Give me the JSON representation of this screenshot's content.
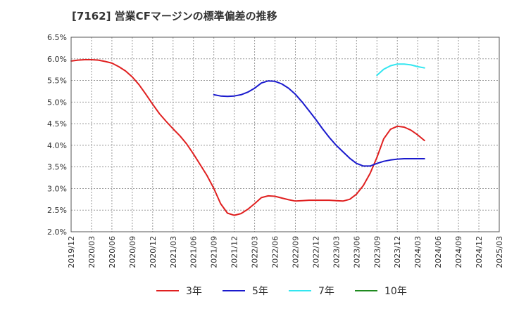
{
  "chart_data": {
    "type": "line",
    "title": "[7162]  営業CFマージンの標準偏差の推移",
    "xlabel": "",
    "ylabel": "",
    "ylim": [
      2.0,
      6.5
    ],
    "yticks": [
      "6.5%",
      "6.0%",
      "5.5%",
      "5.0%",
      "4.5%",
      "4.0%",
      "3.5%",
      "3.0%",
      "2.5%",
      "2.0%"
    ],
    "ytick_values": [
      6.5,
      6.0,
      5.5,
      5.0,
      4.5,
      4.0,
      3.5,
      3.0,
      2.5,
      2.0
    ],
    "x_range": [
      "2019/12",
      "2025/03"
    ],
    "xticks": [
      "2019/12",
      "2020/03",
      "2020/06",
      "2020/09",
      "2020/12",
      "2021/03",
      "2021/06",
      "2021/09",
      "2021/12",
      "2022/03",
      "2022/06",
      "2022/09",
      "2022/12",
      "2023/03",
      "2023/06",
      "2023/09",
      "2023/12",
      "2024/03",
      "2024/06",
      "2024/09",
      "2024/12",
      "2025/03"
    ],
    "grid": true,
    "legend_position": "bottom",
    "series": [
      {
        "name": "3年",
        "color": "#e02020",
        "points": [
          [
            "2019/12",
            5.95
          ],
          [
            "2020/01",
            5.97
          ],
          [
            "2020/02",
            5.98
          ],
          [
            "2020/03",
            5.98
          ],
          [
            "2020/04",
            5.97
          ],
          [
            "2020/05",
            5.94
          ],
          [
            "2020/06",
            5.9
          ],
          [
            "2020/07",
            5.82
          ],
          [
            "2020/08",
            5.72
          ],
          [
            "2020/09",
            5.58
          ],
          [
            "2020/10",
            5.4
          ],
          [
            "2020/11",
            5.18
          ],
          [
            "2020/12",
            4.95
          ],
          [
            "2021/01",
            4.73
          ],
          [
            "2021/02",
            4.55
          ],
          [
            "2021/03",
            4.38
          ],
          [
            "2021/04",
            4.22
          ],
          [
            "2021/05",
            4.03
          ],
          [
            "2021/06",
            3.8
          ],
          [
            "2021/07",
            3.55
          ],
          [
            "2021/08",
            3.3
          ],
          [
            "2021/09",
            3.0
          ],
          [
            "2021/10",
            2.65
          ],
          [
            "2021/11",
            2.43
          ],
          [
            "2021/12",
            2.38
          ],
          [
            "2022/01",
            2.42
          ],
          [
            "2022/02",
            2.52
          ],
          [
            "2022/03",
            2.65
          ],
          [
            "2022/04",
            2.79
          ],
          [
            "2022/05",
            2.83
          ],
          [
            "2022/06",
            2.82
          ],
          [
            "2022/07",
            2.78
          ],
          [
            "2022/08",
            2.74
          ],
          [
            "2022/09",
            2.71
          ],
          [
            "2022/10",
            2.72
          ],
          [
            "2022/11",
            2.73
          ],
          [
            "2022/12",
            2.73
          ],
          [
            "2023/01",
            2.73
          ],
          [
            "2023/02",
            2.73
          ],
          [
            "2023/03",
            2.72
          ],
          [
            "2023/04",
            2.71
          ],
          [
            "2023/05",
            2.75
          ],
          [
            "2023/06",
            2.87
          ],
          [
            "2023/07",
            3.07
          ],
          [
            "2023/08",
            3.35
          ],
          [
            "2023/09",
            3.72
          ],
          [
            "2023/10",
            4.15
          ],
          [
            "2023/11",
            4.37
          ],
          [
            "2023/12",
            4.44
          ],
          [
            "2024/01",
            4.42
          ],
          [
            "2024/02",
            4.35
          ],
          [
            "2024/03",
            4.24
          ],
          [
            "2024/04",
            4.11
          ]
        ]
      },
      {
        "name": "5年",
        "color": "#1a1acd",
        "points": [
          [
            "2021/09",
            5.17
          ],
          [
            "2021/10",
            5.14
          ],
          [
            "2021/11",
            5.13
          ],
          [
            "2021/12",
            5.14
          ],
          [
            "2022/01",
            5.17
          ],
          [
            "2022/02",
            5.23
          ],
          [
            "2022/03",
            5.32
          ],
          [
            "2022/04",
            5.44
          ],
          [
            "2022/05",
            5.49
          ],
          [
            "2022/06",
            5.48
          ],
          [
            "2022/07",
            5.42
          ],
          [
            "2022/08",
            5.32
          ],
          [
            "2022/09",
            5.18
          ],
          [
            "2022/10",
            5.0
          ],
          [
            "2022/11",
            4.8
          ],
          [
            "2022/12",
            4.6
          ],
          [
            "2023/01",
            4.38
          ],
          [
            "2023/02",
            4.18
          ],
          [
            "2023/03",
            4.0
          ],
          [
            "2023/04",
            3.85
          ],
          [
            "2023/05",
            3.7
          ],
          [
            "2023/06",
            3.58
          ],
          [
            "2023/07",
            3.52
          ],
          [
            "2023/08",
            3.52
          ],
          [
            "2023/09",
            3.58
          ],
          [
            "2023/10",
            3.63
          ],
          [
            "2023/11",
            3.66
          ],
          [
            "2023/12",
            3.68
          ],
          [
            "2024/01",
            3.69
          ],
          [
            "2024/02",
            3.69
          ],
          [
            "2024/03",
            3.69
          ],
          [
            "2024/04",
            3.69
          ]
        ]
      },
      {
        "name": "7年",
        "color": "#33e6f0",
        "points": [
          [
            "2023/09",
            5.62
          ],
          [
            "2023/10",
            5.76
          ],
          [
            "2023/11",
            5.84
          ],
          [
            "2023/12",
            5.88
          ],
          [
            "2024/01",
            5.88
          ],
          [
            "2024/02",
            5.86
          ],
          [
            "2024/03",
            5.82
          ],
          [
            "2024/04",
            5.79
          ]
        ]
      },
      {
        "name": "10年",
        "color": "#1f8a1f",
        "points": []
      }
    ]
  }
}
